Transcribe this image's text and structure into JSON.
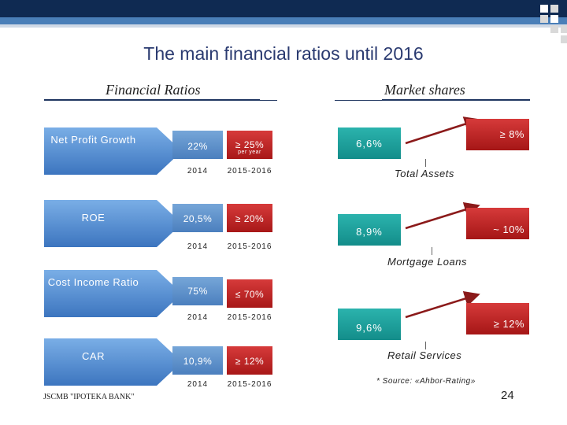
{
  "title": "The main financial ratios until 2016",
  "left_heading": "Financial Ratios",
  "right_heading": "Market  shares",
  "ratios": [
    {
      "name": "Net Profit Growth",
      "current": "22%",
      "target": "≥ 25%",
      "target_note": "per year",
      "year_current": "2014",
      "year_target": "2015-2016"
    },
    {
      "name": "ROE",
      "current": "20,5%",
      "target": "≥ 20%",
      "target_note": "",
      "year_current": "2014",
      "year_target": "2015-2016"
    },
    {
      "name": "Cost Income Ratio",
      "current": "75%",
      "target": "≤ 70%",
      "target_note": "",
      "year_current": "2014",
      "year_target": "2015-2016"
    },
    {
      "name": "CAR",
      "current": "10,9%",
      "target": "≥ 12%",
      "target_note": "",
      "year_current": "2014",
      "year_target": "2015-2016"
    }
  ],
  "market_shares": [
    {
      "current": "6,6%",
      "target": "≥ 8%",
      "label": "Total Assets"
    },
    {
      "current": "8,9%",
      "target": "~ 10%",
      "label": "Mortgage Loans"
    },
    {
      "current": "9,6%",
      "target": "≥ 12%",
      "label": "Retail Services"
    }
  ],
  "source_note": "* Source: «Ahbor-Rating»",
  "footer": "JSCMB \"IPOTEKA BANK\"",
  "page_number": "24",
  "colors": {
    "banner_dark": "#0f2a52",
    "banner_mid": "#4a7fb8",
    "tab_blue": "#5b8fcf",
    "target_red": "#b82020",
    "teal": "#1a9e9a",
    "arrow": "#8b1a1a"
  }
}
